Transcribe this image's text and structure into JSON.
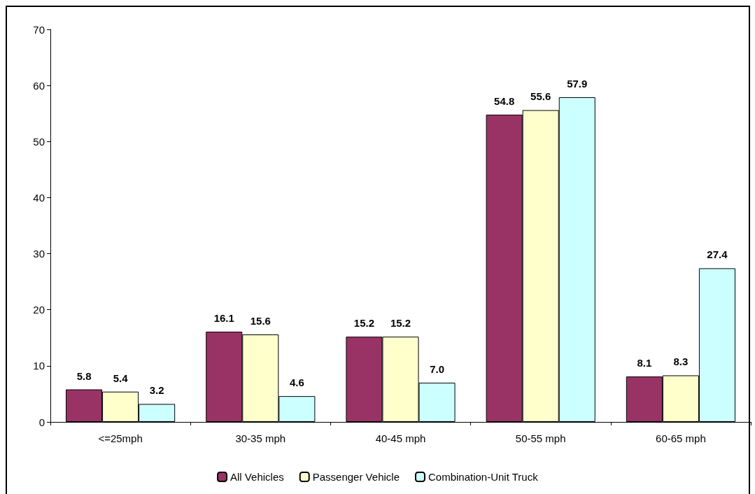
{
  "chart_data": {
    "type": "bar",
    "categories": [
      "<=25mph",
      "30-35 mph",
      "40-45 mph",
      "50-55 mph",
      "60-65 mph"
    ],
    "series": [
      {
        "name": "All Vehicles",
        "color": "#993366",
        "values": [
          5.8,
          16.1,
          15.2,
          54.8,
          8.1
        ],
        "value_labels": [
          "5.8",
          "16.1",
          "15.2",
          "54.8",
          "8.1"
        ]
      },
      {
        "name": "Passenger Vehicle",
        "color": "#ffffcc",
        "values": [
          5.4,
          15.6,
          15.2,
          55.6,
          8.3
        ],
        "value_labels": [
          "5.4",
          "15.6",
          "15.2",
          "55.6",
          "8.3"
        ]
      },
      {
        "name": "Combination-Unit Truck",
        "color": "#ccffff",
        "values": [
          3.2,
          4.6,
          7.0,
          57.9,
          27.4
        ],
        "value_labels": [
          "3.2",
          "4.6",
          "7.0",
          "57.9",
          "27.4"
        ]
      }
    ],
    "ylim": [
      0,
      70
    ],
    "yticks": [
      0,
      10,
      20,
      30,
      40,
      50,
      60,
      70
    ],
    "grid": false,
    "legend": "bottom"
  }
}
